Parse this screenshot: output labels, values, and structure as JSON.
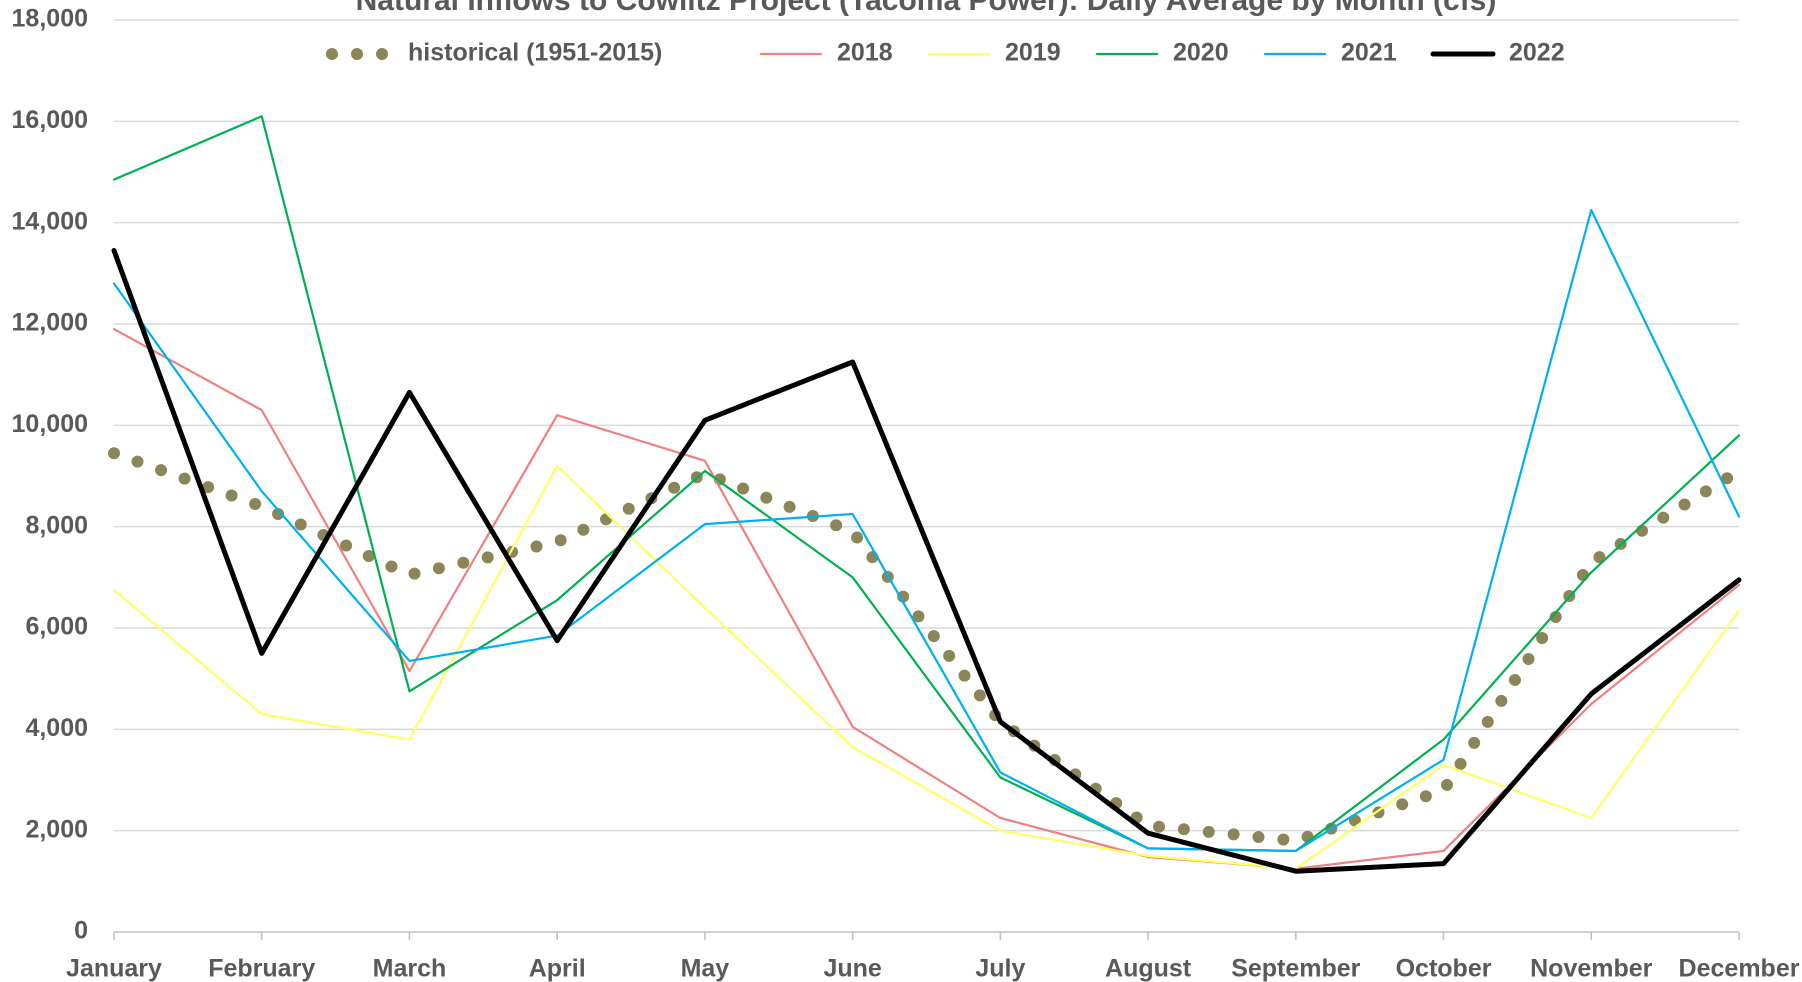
{
  "chart_data": {
    "type": "line",
    "title": "Natural Inflows to Cowlitz Project (Tacoma Power): Daily Average by Month (cfs)",
    "categories": [
      "January",
      "February",
      "March",
      "April",
      "May",
      "June",
      "July",
      "August",
      "September",
      "October",
      "November",
      "December"
    ],
    "series": [
      {
        "name": "historical (1951-2015)",
        "color": "#8c8557",
        "style": "dotted",
        "values": [
          9450,
          8400,
          7050,
          7700,
          9050,
          7900,
          4150,
          2100,
          1800,
          2800,
          7300,
          9100
        ]
      },
      {
        "name": "2018",
        "color": "#f08080",
        "values": [
          11900,
          10300,
          5150,
          10200,
          9300,
          4050,
          2250,
          1480,
          1250,
          1600,
          4500,
          6850
        ]
      },
      {
        "name": "2019",
        "color": "#ffff66",
        "values": [
          6750,
          4300,
          3800,
          9200,
          6400,
          3650,
          2000,
          1500,
          1250,
          3300,
          2250,
          6350
        ]
      },
      {
        "name": "2020",
        "color": "#00b050",
        "values": [
          14850,
          16100,
          4750,
          6550,
          9100,
          7000,
          3050,
          1650,
          1600,
          3800,
          7100,
          9800
        ]
      },
      {
        "name": "2021",
        "color": "#00b0f0",
        "values": [
          12800,
          8700,
          5350,
          5850,
          8050,
          8250,
          3150,
          1650,
          1600,
          3400,
          14250,
          8200
        ]
      },
      {
        "name": "2022",
        "color": "#000000",
        "width": 5,
        "values": [
          13450,
          5500,
          10650,
          5750,
          10100,
          11250,
          4150,
          1950,
          1200,
          1350,
          4700,
          6950
        ]
      }
    ],
    "ylim": [
      0,
      18000
    ],
    "yticks": [
      0,
      {
        "value": 2000,
        "label": "2,000"
      },
      {
        "value": 4000,
        "label": "4,000"
      },
      {
        "value": 6000,
        "label": "6,000"
      },
      {
        "value": 8000,
        "label": "8,000"
      },
      {
        "value": 10000,
        "label": "10,000"
      },
      {
        "value": 12000,
        "label": "12,000"
      },
      {
        "value": 14000,
        "label": "14,000"
      },
      {
        "value": 16000,
        "label": "16,000"
      },
      {
        "value": 18000,
        "label": "18,000"
      }
    ],
    "grid": true,
    "legend": "top"
  }
}
